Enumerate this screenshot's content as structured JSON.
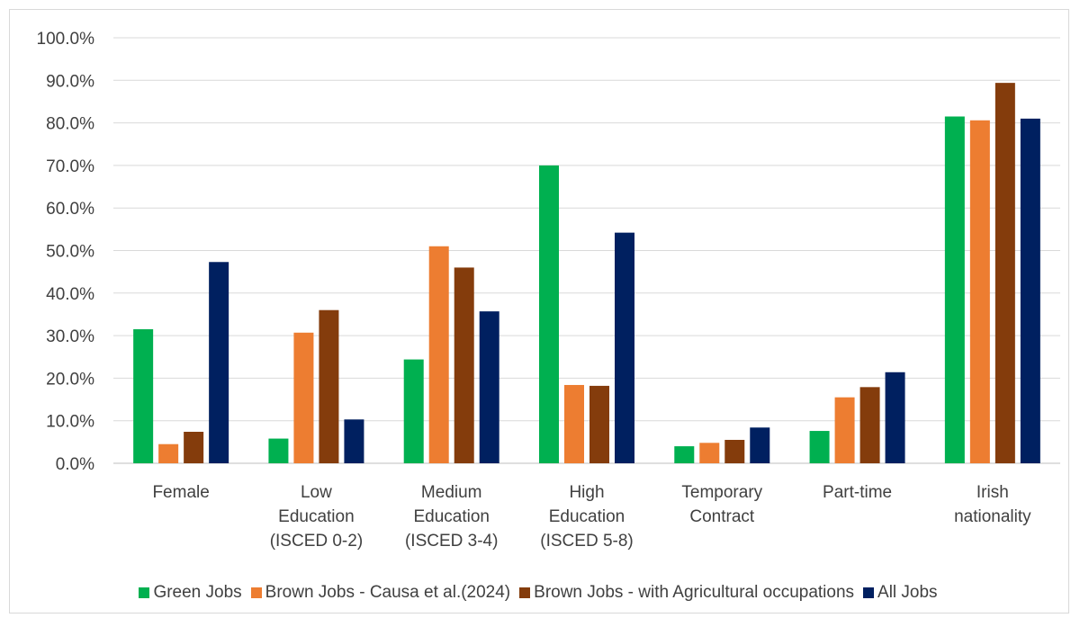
{
  "chart_data": {
    "type": "bar",
    "title": "",
    "xlabel": "",
    "ylabel": "",
    "ylim": [
      0,
      100
    ],
    "y_ticks": [
      "0.0%",
      "10.0%",
      "20.0%",
      "30.0%",
      "40.0%",
      "50.0%",
      "60.0%",
      "70.0%",
      "80.0%",
      "90.0%",
      "100.0%"
    ],
    "y_tick_values": [
      0,
      10,
      20,
      30,
      40,
      50,
      60,
      70,
      80,
      90,
      100
    ],
    "grid": true,
    "legend_position": "bottom",
    "categories": [
      [
        "Female"
      ],
      [
        "Low",
        "Education",
        "(ISCED 0-2)"
      ],
      [
        "Medium",
        "Education",
        "(ISCED 3-4)"
      ],
      [
        "High",
        "Education",
        "(ISCED 5-8)"
      ],
      [
        "Temporary",
        "Contract"
      ],
      [
        "Part-time"
      ],
      [
        "Irish",
        "nationality"
      ]
    ],
    "series": [
      {
        "name": "Green Jobs",
        "color": "#00b050",
        "values": [
          31.5,
          5.8,
          24.4,
          70.0,
          4.0,
          7.6,
          81.5
        ]
      },
      {
        "name": "Brown Jobs - Causa et al.(2024)",
        "color": "#ed7d31",
        "values": [
          4.5,
          30.7,
          51.0,
          18.4,
          4.8,
          15.5,
          80.6
        ]
      },
      {
        "name": "Brown Jobs - with Agricultural occupations",
        "color": "#843c0c",
        "values": [
          7.4,
          36.0,
          46.0,
          18.2,
          5.5,
          17.9,
          89.4
        ]
      },
      {
        "name": "All Jobs",
        "color": "#002060",
        "values": [
          47.3,
          10.3,
          35.7,
          54.2,
          8.4,
          21.4,
          81.0
        ]
      }
    ]
  }
}
